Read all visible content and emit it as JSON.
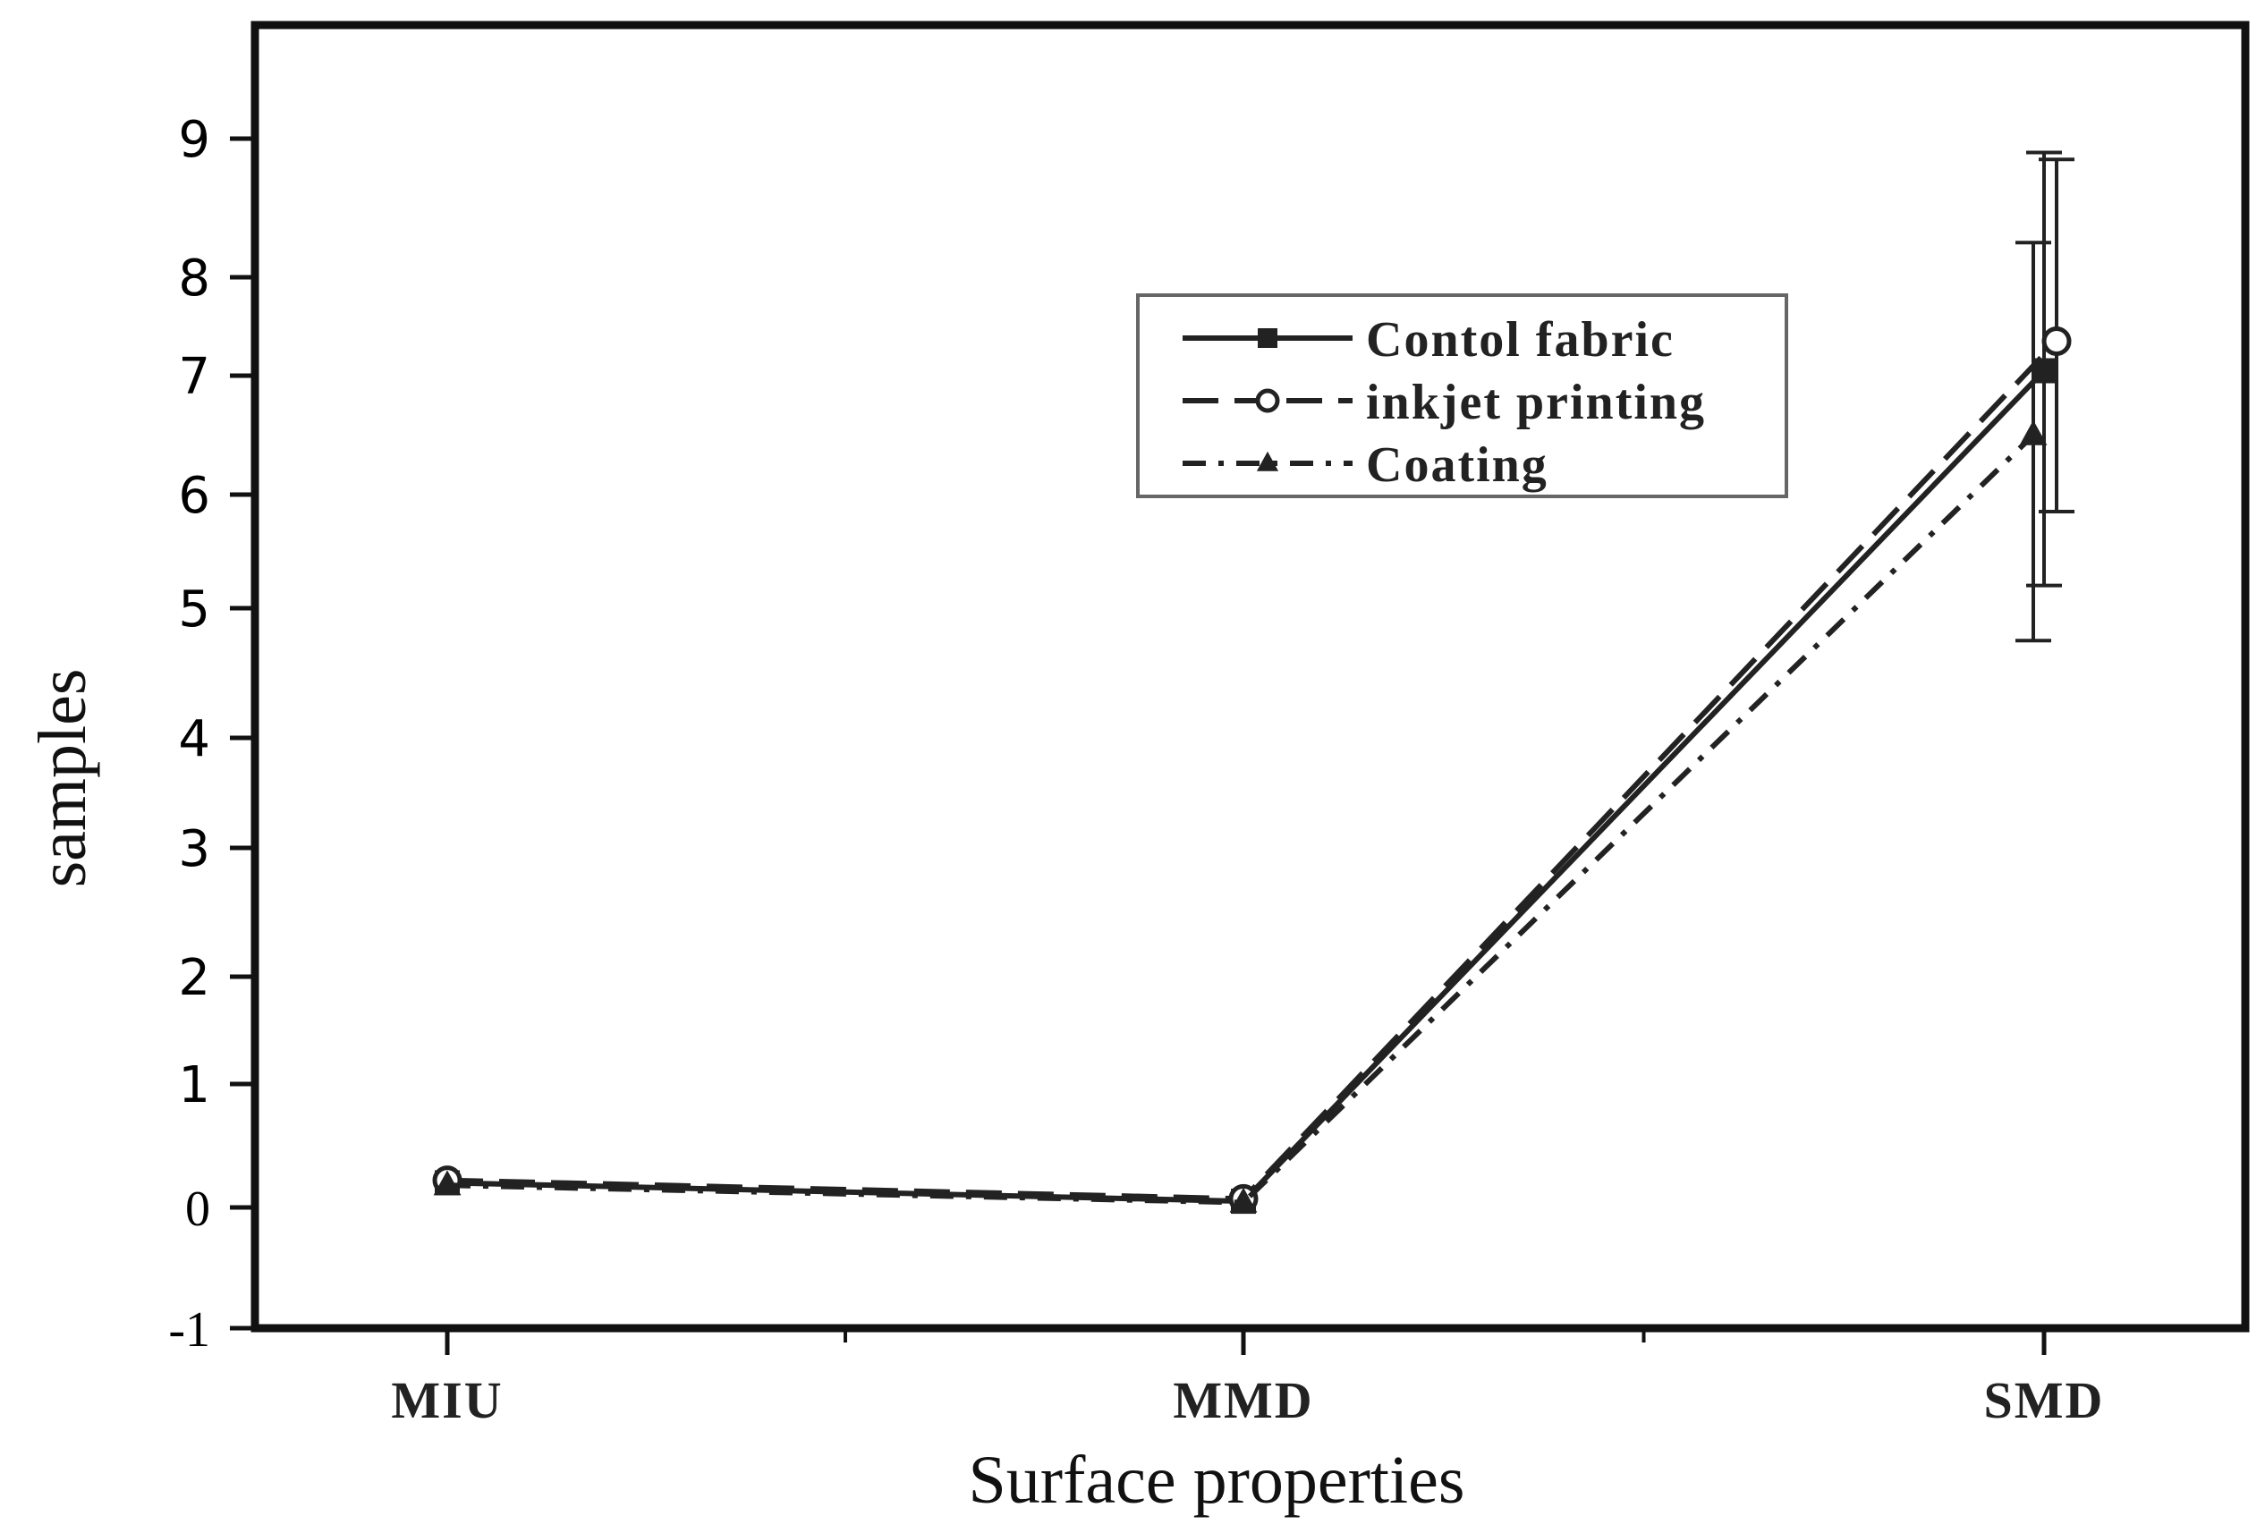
{
  "chart_data": {
    "type": "line",
    "categories": [
      "MIU",
      "MMD",
      "SMD"
    ],
    "series": [
      {
        "name": "Contol fabric",
        "values": [
          0.2,
          0.05,
          7.05
        ],
        "error": [
          0,
          0,
          1.85
        ],
        "style": "solid",
        "marker": "square"
      },
      {
        "name": "inkjet printing",
        "values": [
          0.22,
          0.07,
          7.35
        ],
        "error": [
          0,
          0,
          1.5
        ],
        "style": "dashed",
        "marker": "circle"
      },
      {
        "name": "Coating",
        "values": [
          0.18,
          0.04,
          6.5
        ],
        "error": [
          0,
          0,
          1.75
        ],
        "style": "dashdot",
        "marker": "triangle"
      }
    ],
    "xlabel": "Surface properties",
    "ylabel": "samples",
    "ylim": [
      -1,
      10
    ],
    "yticks": [
      "-1",
      "0",
      "1",
      "2",
      "3",
      "4",
      "5",
      "6",
      "7",
      "8",
      "9"
    ],
    "legend_position": "top-right",
    "grid": false,
    "line_color": "#222222"
  }
}
